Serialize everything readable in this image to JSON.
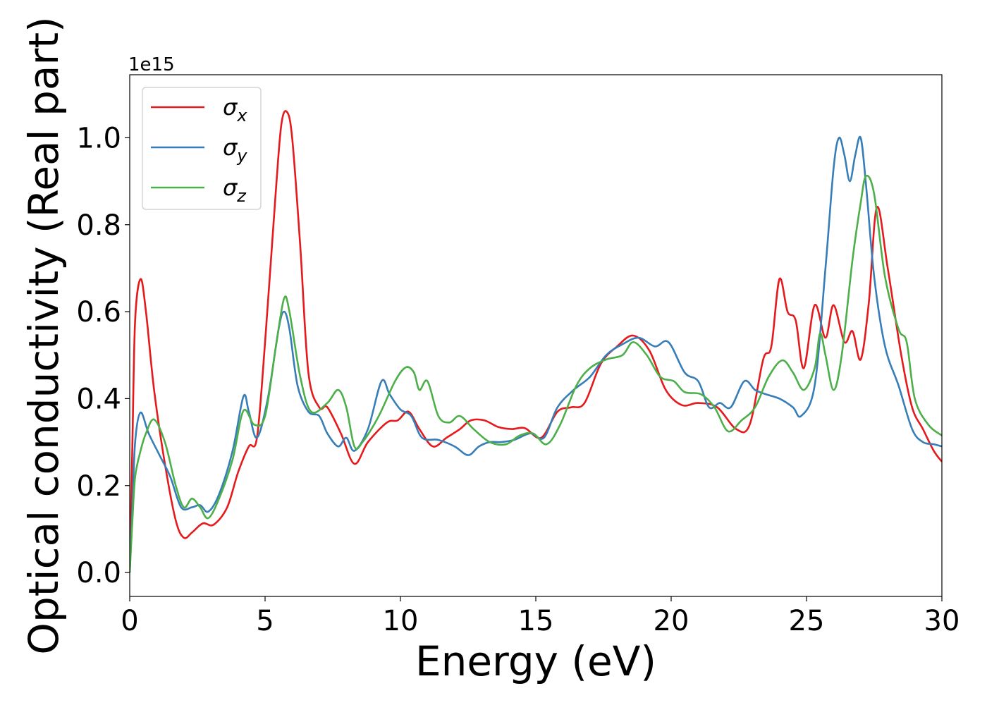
{
  "chart_data": {
    "type": "line",
    "ylabel": "Optical conductivity (Real part)",
    "xlabel": "Energy (eV)",
    "scale_label": "1e15",
    "xlim": [
      0,
      30
    ],
    "ylim": [
      -0.055,
      1.145
    ],
    "x_ticks": [
      0,
      5,
      10,
      15,
      20,
      25,
      30
    ],
    "y_ticks": [
      0.0,
      0.2,
      0.4,
      0.6,
      0.8,
      1.0
    ],
    "x_tick_labels": [
      "0",
      "5",
      "10",
      "15",
      "20",
      "25",
      "30"
    ],
    "y_tick_labels": [
      "0.0",
      "0.2",
      "0.4",
      "0.6",
      "0.8",
      "1.0"
    ],
    "grid": false,
    "legend_position": "top-left",
    "series": [
      {
        "name": "σx",
        "sub": "x",
        "color": "#e41a1c",
        "points": [
          [
            0,
            0
          ],
          [
            0.1,
            0.3
          ],
          [
            0.2,
            0.58
          ],
          [
            0.4,
            0.675
          ],
          [
            0.6,
            0.6
          ],
          [
            0.9,
            0.42
          ],
          [
            1.3,
            0.25
          ],
          [
            1.7,
            0.12
          ],
          [
            2.0,
            0.08
          ],
          [
            2.3,
            0.092
          ],
          [
            2.7,
            0.113
          ],
          [
            3.1,
            0.11
          ],
          [
            3.6,
            0.15
          ],
          [
            4.0,
            0.23
          ],
          [
            4.4,
            0.29
          ],
          [
            4.7,
            0.31
          ],
          [
            5.0,
            0.53
          ],
          [
            5.4,
            0.88
          ],
          [
            5.6,
            1.03
          ],
          [
            5.8,
            1.06
          ],
          [
            6.0,
            1.0
          ],
          [
            6.3,
            0.75
          ],
          [
            6.6,
            0.46
          ],
          [
            7.0,
            0.38
          ],
          [
            7.3,
            0.38
          ],
          [
            7.8,
            0.32
          ],
          [
            8.3,
            0.25
          ],
          [
            8.8,
            0.3
          ],
          [
            9.5,
            0.345
          ],
          [
            9.9,
            0.35
          ],
          [
            10.3,
            0.37
          ],
          [
            10.7,
            0.33
          ],
          [
            11.2,
            0.29
          ],
          [
            11.7,
            0.31
          ],
          [
            12.2,
            0.33
          ],
          [
            12.6,
            0.35
          ],
          [
            13.1,
            0.35
          ],
          [
            13.6,
            0.335
          ],
          [
            14.1,
            0.33
          ],
          [
            14.6,
            0.332
          ],
          [
            15.2,
            0.31
          ],
          [
            15.8,
            0.37
          ],
          [
            16.3,
            0.38
          ],
          [
            16.8,
            0.39
          ],
          [
            17.4,
            0.48
          ],
          [
            18.0,
            0.52
          ],
          [
            18.6,
            0.545
          ],
          [
            19.2,
            0.51
          ],
          [
            19.8,
            0.42
          ],
          [
            20.4,
            0.385
          ],
          [
            21.0,
            0.39
          ],
          [
            21.7,
            0.38
          ],
          [
            22.4,
            0.33
          ],
          [
            22.9,
            0.34
          ],
          [
            23.4,
            0.49
          ],
          [
            23.7,
            0.52
          ],
          [
            24.0,
            0.675
          ],
          [
            24.3,
            0.6
          ],
          [
            24.6,
            0.58
          ],
          [
            24.9,
            0.47
          ],
          [
            25.3,
            0.615
          ],
          [
            25.7,
            0.54
          ],
          [
            26.0,
            0.615
          ],
          [
            26.4,
            0.53
          ],
          [
            26.7,
            0.555
          ],
          [
            27.0,
            0.49
          ],
          [
            27.3,
            0.62
          ],
          [
            27.6,
            0.84
          ],
          [
            28.0,
            0.7
          ],
          [
            28.5,
            0.5
          ],
          [
            28.9,
            0.38
          ],
          [
            29.3,
            0.33
          ],
          [
            29.7,
            0.28
          ],
          [
            30.0,
            0.255
          ]
        ]
      },
      {
        "name": "σy",
        "sub": "y",
        "color": "#377eb8",
        "points": [
          [
            0,
            0
          ],
          [
            0.1,
            0.15
          ],
          [
            0.2,
            0.3
          ],
          [
            0.4,
            0.368
          ],
          [
            0.7,
            0.32
          ],
          [
            1.1,
            0.27
          ],
          [
            1.5,
            0.22
          ],
          [
            1.9,
            0.15
          ],
          [
            2.3,
            0.15
          ],
          [
            2.6,
            0.155
          ],
          [
            2.9,
            0.14
          ],
          [
            3.3,
            0.18
          ],
          [
            3.8,
            0.28
          ],
          [
            4.2,
            0.405
          ],
          [
            4.4,
            0.37
          ],
          [
            4.7,
            0.31
          ],
          [
            5.1,
            0.4
          ],
          [
            5.5,
            0.56
          ],
          [
            5.7,
            0.6
          ],
          [
            5.9,
            0.56
          ],
          [
            6.2,
            0.43
          ],
          [
            6.6,
            0.37
          ],
          [
            7.0,
            0.36
          ],
          [
            7.3,
            0.32
          ],
          [
            7.7,
            0.29
          ],
          [
            8.0,
            0.31
          ],
          [
            8.3,
            0.28
          ],
          [
            8.8,
            0.33
          ],
          [
            9.3,
            0.44
          ],
          [
            9.6,
            0.41
          ],
          [
            10.0,
            0.375
          ],
          [
            10.4,
            0.36
          ],
          [
            10.8,
            0.31
          ],
          [
            11.4,
            0.305
          ],
          [
            12.0,
            0.29
          ],
          [
            12.5,
            0.27
          ],
          [
            12.9,
            0.29
          ],
          [
            13.3,
            0.3
          ],
          [
            13.7,
            0.3
          ],
          [
            14.2,
            0.305
          ],
          [
            14.8,
            0.32
          ],
          [
            15.3,
            0.31
          ],
          [
            15.8,
            0.38
          ],
          [
            16.4,
            0.42
          ],
          [
            17.0,
            0.45
          ],
          [
            17.6,
            0.5
          ],
          [
            18.2,
            0.525
          ],
          [
            18.8,
            0.54
          ],
          [
            19.4,
            0.52
          ],
          [
            19.9,
            0.53
          ],
          [
            20.5,
            0.46
          ],
          [
            21.0,
            0.44
          ],
          [
            21.4,
            0.38
          ],
          [
            21.8,
            0.39
          ],
          [
            22.2,
            0.38
          ],
          [
            22.7,
            0.44
          ],
          [
            23.1,
            0.42
          ],
          [
            23.5,
            0.41
          ],
          [
            24.0,
            0.4
          ],
          [
            24.5,
            0.38
          ],
          [
            24.8,
            0.36
          ],
          [
            25.3,
            0.43
          ],
          [
            25.7,
            0.7
          ],
          [
            26.0,
            0.93
          ],
          [
            26.2,
            1.0
          ],
          [
            26.4,
            0.96
          ],
          [
            26.6,
            0.9
          ],
          [
            26.8,
            0.96
          ],
          [
            27.0,
            1.0
          ],
          [
            27.2,
            0.89
          ],
          [
            27.5,
            0.68
          ],
          [
            27.9,
            0.52
          ],
          [
            28.4,
            0.43
          ],
          [
            28.9,
            0.33
          ],
          [
            29.3,
            0.3
          ],
          [
            29.7,
            0.295
          ],
          [
            30.0,
            0.29
          ]
        ]
      },
      {
        "name": "σz",
        "sub": "z",
        "color": "#4daf4a",
        "points": [
          [
            0,
            0
          ],
          [
            0.1,
            0.12
          ],
          [
            0.2,
            0.22
          ],
          [
            0.4,
            0.28
          ],
          [
            0.6,
            0.32
          ],
          [
            0.9,
            0.352
          ],
          [
            1.3,
            0.3
          ],
          [
            1.7,
            0.2
          ],
          [
            2.0,
            0.15
          ],
          [
            2.3,
            0.17
          ],
          [
            2.6,
            0.15
          ],
          [
            2.9,
            0.125
          ],
          [
            3.3,
            0.17
          ],
          [
            3.8,
            0.26
          ],
          [
            4.2,
            0.372
          ],
          [
            4.6,
            0.34
          ],
          [
            5.0,
            0.36
          ],
          [
            5.4,
            0.52
          ],
          [
            5.7,
            0.63
          ],
          [
            5.9,
            0.6
          ],
          [
            6.3,
            0.45
          ],
          [
            6.7,
            0.37
          ],
          [
            7.3,
            0.39
          ],
          [
            7.7,
            0.42
          ],
          [
            8.0,
            0.38
          ],
          [
            8.3,
            0.29
          ],
          [
            8.6,
            0.3
          ],
          [
            9.2,
            0.36
          ],
          [
            9.8,
            0.44
          ],
          [
            10.2,
            0.472
          ],
          [
            10.5,
            0.46
          ],
          [
            10.7,
            0.42
          ],
          [
            11.0,
            0.44
          ],
          [
            11.4,
            0.36
          ],
          [
            11.8,
            0.345
          ],
          [
            12.2,
            0.36
          ],
          [
            12.7,
            0.33
          ],
          [
            13.3,
            0.3
          ],
          [
            13.9,
            0.295
          ],
          [
            14.4,
            0.315
          ],
          [
            14.9,
            0.32
          ],
          [
            15.4,
            0.295
          ],
          [
            15.9,
            0.34
          ],
          [
            16.5,
            0.43
          ],
          [
            17.0,
            0.47
          ],
          [
            17.6,
            0.49
          ],
          [
            18.2,
            0.5
          ],
          [
            18.6,
            0.53
          ],
          [
            19.1,
            0.5
          ],
          [
            19.6,
            0.45
          ],
          [
            20.1,
            0.44
          ],
          [
            20.5,
            0.415
          ],
          [
            21.1,
            0.41
          ],
          [
            21.6,
            0.38
          ],
          [
            22.1,
            0.325
          ],
          [
            22.6,
            0.35
          ],
          [
            23.1,
            0.38
          ],
          [
            23.6,
            0.45
          ],
          [
            24.1,
            0.488
          ],
          [
            24.5,
            0.46
          ],
          [
            24.9,
            0.42
          ],
          [
            25.3,
            0.47
          ],
          [
            25.5,
            0.55
          ],
          [
            25.7,
            0.5
          ],
          [
            26.0,
            0.42
          ],
          [
            26.3,
            0.5
          ],
          [
            26.7,
            0.72
          ],
          [
            27.0,
            0.85
          ],
          [
            27.2,
            0.912
          ],
          [
            27.5,
            0.87
          ],
          [
            27.9,
            0.68
          ],
          [
            28.4,
            0.56
          ],
          [
            28.7,
            0.53
          ],
          [
            29.0,
            0.4
          ],
          [
            29.5,
            0.34
          ],
          [
            30.0,
            0.315
          ]
        ]
      }
    ]
  }
}
